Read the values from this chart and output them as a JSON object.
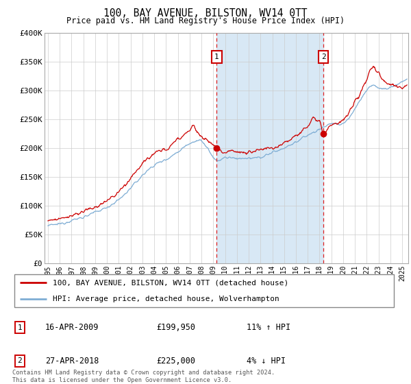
{
  "title": "100, BAY AVENUE, BILSTON, WV14 0TT",
  "subtitle": "Price paid vs. HM Land Registry's House Price Index (HPI)",
  "ylabel_ticks": [
    "£0",
    "£50K",
    "£100K",
    "£150K",
    "£200K",
    "£250K",
    "£300K",
    "£350K",
    "£400K"
  ],
  "ylim": [
    0,
    400000
  ],
  "xlim_start": 1994.7,
  "xlim_end": 2025.5,
  "sale1_date": 2009.29,
  "sale1_price": 199950,
  "sale1_label": "1",
  "sale2_date": 2018.32,
  "sale2_price": 225000,
  "sale2_label": "2",
  "hpi_color": "#7eadd4",
  "price_color": "#cc0000",
  "marker_box_color": "#cc0000",
  "dashed_line_color": "#dd2222",
  "shade_color": "#d8e8f5",
  "legend_line1": "100, BAY AVENUE, BILSTON, WV14 0TT (detached house)",
  "legend_line2": "HPI: Average price, detached house, Wolverhampton",
  "footnote": "Contains HM Land Registry data © Crown copyright and database right 2024.\nThis data is licensed under the Open Government Licence v3.0.",
  "xtick_years": [
    1995,
    1996,
    1997,
    1998,
    1999,
    2000,
    2001,
    2002,
    2003,
    2004,
    2005,
    2006,
    2007,
    2008,
    2009,
    2010,
    2011,
    2012,
    2013,
    2014,
    2015,
    2016,
    2017,
    2018,
    2019,
    2020,
    2021,
    2022,
    2023,
    2024,
    2025
  ]
}
